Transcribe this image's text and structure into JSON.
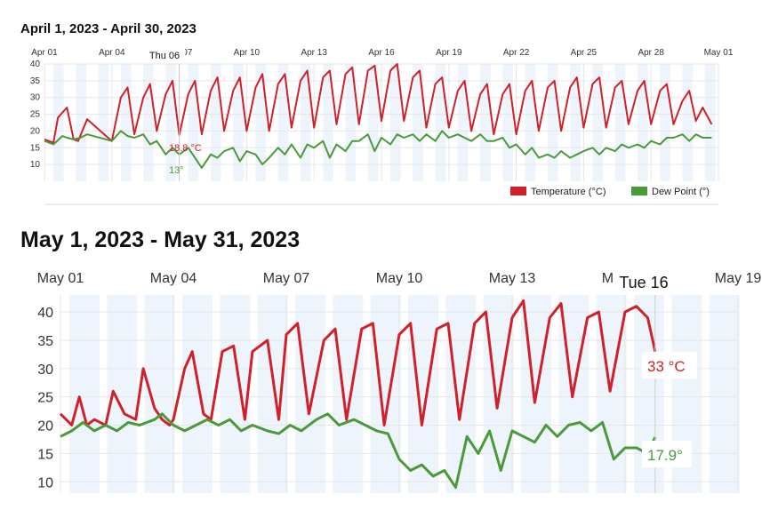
{
  "chart_data": [
    {
      "type": "line",
      "title": "April 1, 2023 - April 30, 2023",
      "ylim": [
        5,
        40
      ],
      "yticks": [
        10,
        15,
        20,
        25,
        30,
        35,
        40
      ],
      "xlim": [
        0,
        30
      ],
      "xticks": [
        {
          "x": 0,
          "label": "Apr 01"
        },
        {
          "x": 3,
          "label": "Apr 04"
        },
        {
          "x": 6,
          "label": "Apr 07"
        },
        {
          "x": 9,
          "label": "Apr 10"
        },
        {
          "x": 12,
          "label": "Apr 13"
        },
        {
          "x": 15,
          "label": "Apr 16"
        },
        {
          "x": 18,
          "label": "Apr 19"
        },
        {
          "x": 21,
          "label": "Apr 22"
        },
        {
          "x": 24,
          "label": "Apr 25"
        },
        {
          "x": 27,
          "label": "Apr 28"
        },
        {
          "x": 30,
          "label": "May 01"
        }
      ],
      "series": [
        {
          "name": "Temperature (°C)",
          "color": "#d0202a",
          "x": [
            0,
            0.4,
            0.6,
            1.0,
            1.3,
            1.5,
            1.9,
            3.0,
            3.4,
            3.7,
            4.0,
            4.4,
            4.7,
            5.0,
            5.4,
            5.7,
            6.0,
            6.4,
            6.7,
            7.0,
            7.4,
            7.7,
            8.0,
            8.4,
            8.7,
            9.0,
            9.4,
            9.7,
            10.0,
            10.4,
            10.7,
            11.0,
            11.4,
            11.7,
            12.0,
            12.4,
            12.7,
            13.0,
            13.4,
            13.7,
            14.0,
            14.4,
            14.7,
            15.0,
            15.4,
            15.7,
            16.0,
            16.4,
            16.7,
            17.0,
            17.4,
            17.7,
            18.0,
            18.4,
            18.7,
            19.0,
            19.4,
            19.7,
            20.0,
            20.4,
            20.7,
            21.0,
            21.4,
            21.7,
            22.0,
            22.4,
            22.7,
            23.0,
            23.4,
            23.7,
            24.0,
            24.4,
            24.7,
            25.0,
            25.4,
            25.7,
            26.0,
            26.4,
            26.7,
            27.0,
            27.4,
            27.7,
            28.0,
            28.4,
            28.7,
            29.0,
            29.3,
            29.7
          ],
          "y": [
            17.5,
            16.5,
            24,
            27,
            17.5,
            17,
            23.5,
            17,
            30,
            33,
            19,
            30,
            34,
            20,
            31,
            35,
            18.8,
            31,
            35,
            19,
            32,
            36,
            20,
            32,
            36,
            20,
            33,
            37,
            20,
            34,
            37,
            21,
            35,
            38,
            21,
            36,
            38,
            22,
            37,
            39,
            22,
            38,
            39.5,
            23,
            38,
            40,
            23,
            36,
            38,
            21,
            34,
            36,
            21,
            32,
            35,
            20,
            31,
            34,
            19,
            31,
            34,
            19,
            32,
            35,
            20,
            33,
            35,
            20,
            33,
            36,
            21,
            34,
            36,
            21,
            33,
            35,
            22,
            32,
            35,
            22,
            32,
            34,
            22,
            29,
            32,
            23,
            27,
            22
          ]
        },
        {
          "name": "Dew Point (°)",
          "color": "#4b9a3a",
          "x": [
            0,
            0.4,
            0.8,
            1.0,
            1.3,
            1.6,
            1.9,
            3.0,
            3.4,
            3.7,
            4.0,
            4.4,
            4.7,
            5.0,
            5.4,
            5.7,
            6.0,
            6.4,
            6.7,
            7.0,
            7.4,
            7.7,
            8.0,
            8.4,
            8.7,
            9.0,
            9.4,
            9.7,
            10.0,
            10.4,
            10.7,
            11.0,
            11.4,
            11.7,
            12.0,
            12.4,
            12.7,
            13.0,
            13.4,
            13.7,
            14.0,
            14.4,
            14.7,
            15.0,
            15.4,
            15.7,
            16.0,
            16.4,
            16.7,
            17.0,
            17.4,
            17.7,
            18.0,
            18.4,
            18.7,
            19.0,
            19.4,
            19.7,
            20.0,
            20.4,
            20.7,
            21.0,
            21.4,
            21.7,
            22.0,
            22.4,
            22.7,
            23.0,
            23.4,
            23.7,
            24.0,
            24.4,
            24.7,
            25.0,
            25.4,
            25.7,
            26.0,
            26.4,
            26.7,
            27.0,
            27.4,
            27.7,
            28.0,
            28.4,
            28.7,
            29.0,
            29.3,
            29.7
          ],
          "y": [
            17,
            16,
            18.5,
            18,
            17.5,
            18,
            19,
            17,
            20,
            18.5,
            18,
            19,
            16,
            17,
            13,
            15,
            13,
            15,
            12,
            9,
            13,
            12,
            14,
            15,
            11,
            14,
            13,
            10,
            12,
            15,
            13,
            16,
            12,
            16,
            15,
            17,
            12,
            16,
            14,
            17,
            17,
            19,
            14,
            18,
            16,
            19,
            18,
            19,
            17,
            19,
            17,
            20,
            18,
            19,
            18,
            17,
            19,
            17,
            17,
            18,
            15,
            16,
            13,
            15,
            12,
            13,
            12,
            14,
            12,
            13,
            14,
            15,
            13,
            15,
            14,
            16,
            15,
            16,
            15,
            17,
            16,
            18,
            18,
            19,
            17,
            19,
            18,
            18
          ]
        }
      ],
      "tooltip": {
        "date_label": "Thu 06",
        "temp_label": "18.8 °C",
        "dew_label": "13°",
        "x": 6
      },
      "legend": "bottom-right",
      "grid": true
    },
    {
      "type": "line",
      "title": "May 1, 2023 - May 31, 2023",
      "ylim": [
        8,
        43
      ],
      "yticks": [
        10,
        15,
        20,
        25,
        30,
        35,
        40
      ],
      "xlim": [
        0,
        18
      ],
      "xticks": [
        {
          "x": 0,
          "label": "May 01"
        },
        {
          "x": 3,
          "label": "May 04"
        },
        {
          "x": 6,
          "label": "May 07"
        },
        {
          "x": 9,
          "label": "May 10"
        },
        {
          "x": 12,
          "label": "May 13"
        },
        {
          "x": 15,
          "label": "May 16"
        },
        {
          "x": 18,
          "label": "May 19"
        }
      ],
      "series": [
        {
          "name": "Temperature (°C)",
          "color": "#d0202a",
          "x": [
            0,
            0.3,
            0.5,
            0.7,
            0.9,
            1.2,
            1.4,
            1.7,
            2.0,
            2.2,
            2.5,
            2.7,
            2.9,
            3.0,
            3.3,
            3.5,
            3.8,
            4.0,
            4.3,
            4.6,
            4.9,
            5.1,
            5.5,
            5.8,
            6.0,
            6.3,
            6.6,
            7.0,
            7.3,
            7.6,
            8.0,
            8.3,
            8.6,
            9.0,
            9.3,
            9.6,
            10.0,
            10.3,
            10.6,
            11.0,
            11.3,
            11.6,
            12.0,
            12.3,
            12.6,
            13.0,
            13.3,
            13.6,
            14.0,
            14.3,
            14.6,
            15.0,
            15.3,
            15.6,
            15.8
          ],
          "y": [
            22,
            20,
            25,
            20,
            21,
            20,
            26,
            22,
            21,
            30,
            23,
            21,
            20,
            21,
            30,
            33,
            22,
            21,
            33,
            34,
            21,
            33,
            35,
            21,
            36,
            38,
            22,
            35,
            37,
            21,
            37,
            38,
            20,
            36,
            38,
            20,
            37,
            38,
            21,
            38,
            40,
            23,
            39,
            42,
            24,
            39,
            41.5,
            25,
            39,
            40,
            26,
            40,
            41,
            39,
            33
          ]
        },
        {
          "name": "Dew Point (°)",
          "color": "#4b9a3a",
          "x": [
            0,
            0.3,
            0.6,
            0.9,
            1.2,
            1.5,
            1.8,
            2.1,
            2.5,
            2.7,
            3.0,
            3.3,
            3.6,
            3.9,
            4.2,
            4.5,
            4.8,
            5.1,
            5.5,
            5.8,
            6.1,
            6.4,
            6.8,
            7.1,
            7.4,
            7.8,
            8.1,
            8.4,
            8.7,
            9.0,
            9.3,
            9.6,
            9.9,
            10.2,
            10.5,
            10.8,
            11.1,
            11.4,
            11.7,
            12.0,
            12.3,
            12.6,
            12.9,
            13.2,
            13.5,
            13.8,
            14.1,
            14.4,
            14.7,
            15.0,
            15.3,
            15.6,
            15.8
          ],
          "y": [
            18,
            19,
            20.5,
            19,
            20,
            19,
            20.5,
            20,
            21,
            22,
            20,
            19,
            20,
            21,
            20,
            21,
            19,
            20,
            19,
            18.5,
            20,
            19,
            21,
            22,
            20,
            21,
            20,
            19,
            18.5,
            14,
            12,
            13,
            11,
            12,
            9,
            18,
            15,
            19,
            12,
            19,
            18,
            17,
            20,
            18,
            20,
            20.5,
            19,
            20.5,
            14,
            16,
            16,
            15,
            17.9
          ]
        }
      ],
      "tooltip": {
        "date_label": "Tue 16",
        "temp_label": "33 °C",
        "dew_label": "17.9°",
        "x": 15.8
      },
      "grid": true
    }
  ]
}
